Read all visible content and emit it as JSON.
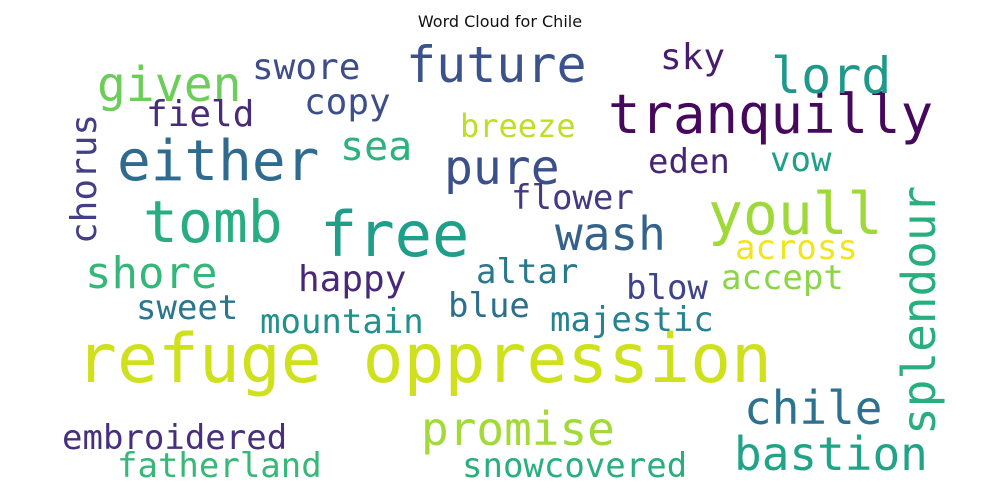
{
  "title": "Word Cloud for Chile",
  "words": [
    {
      "text": "refuge oppression",
      "color": "#cfe11c"
    },
    {
      "text": "either",
      "color": "#2f6b8e"
    },
    {
      "text": "free",
      "color": "#1f9e89"
    },
    {
      "text": "tomb",
      "color": "#27ad81"
    },
    {
      "text": "tranquilly",
      "color": "#46085c"
    },
    {
      "text": "future",
      "color": "#3b528b"
    },
    {
      "text": "youll",
      "color": "#9fd938"
    },
    {
      "text": "given",
      "color": "#6ccd5a"
    },
    {
      "text": "lord",
      "color": "#1f998a"
    },
    {
      "text": "pure",
      "color": "#3b4f8a"
    },
    {
      "text": "wash",
      "color": "#33638d"
    },
    {
      "text": "shore",
      "color": "#35b779"
    },
    {
      "text": "chile",
      "color": "#2c728e"
    },
    {
      "text": "bastion",
      "color": "#20a386"
    },
    {
      "text": "promise",
      "color": "#a2da37"
    },
    {
      "text": "splendour",
      "color": "#29af7f"
    },
    {
      "text": "sea",
      "color": "#2db27d"
    },
    {
      "text": "swore",
      "color": "#3e4c8a"
    },
    {
      "text": "sky",
      "color": "#481c6e"
    },
    {
      "text": "copy",
      "color": "#3c4f8a"
    },
    {
      "text": "field",
      "color": "#472c7a"
    },
    {
      "text": "breeze",
      "color": "#bddf26"
    },
    {
      "text": "eden",
      "color": "#482475"
    },
    {
      "text": "vow",
      "color": "#1f9f88"
    },
    {
      "text": "chorus",
      "color": "#433e85"
    },
    {
      "text": "flower",
      "color": "#443983"
    },
    {
      "text": "across",
      "color": "#f1e51d"
    },
    {
      "text": "accept",
      "color": "#8bd646"
    },
    {
      "text": "happy",
      "color": "#482878"
    },
    {
      "text": "altar",
      "color": "#2a788e"
    },
    {
      "text": "blow",
      "color": "#404387"
    },
    {
      "text": "sweet",
      "color": "#2a768e"
    },
    {
      "text": "blue",
      "color": "#2e6e8e"
    },
    {
      "text": "mountain",
      "color": "#21918c"
    },
    {
      "text": "majestic",
      "color": "#26828e"
    },
    {
      "text": "embroidered",
      "color": "#472f7d"
    },
    {
      "text": "fatherland",
      "color": "#37b878"
    },
    {
      "text": "snowcovered",
      "color": "#29af7f"
    }
  ]
}
